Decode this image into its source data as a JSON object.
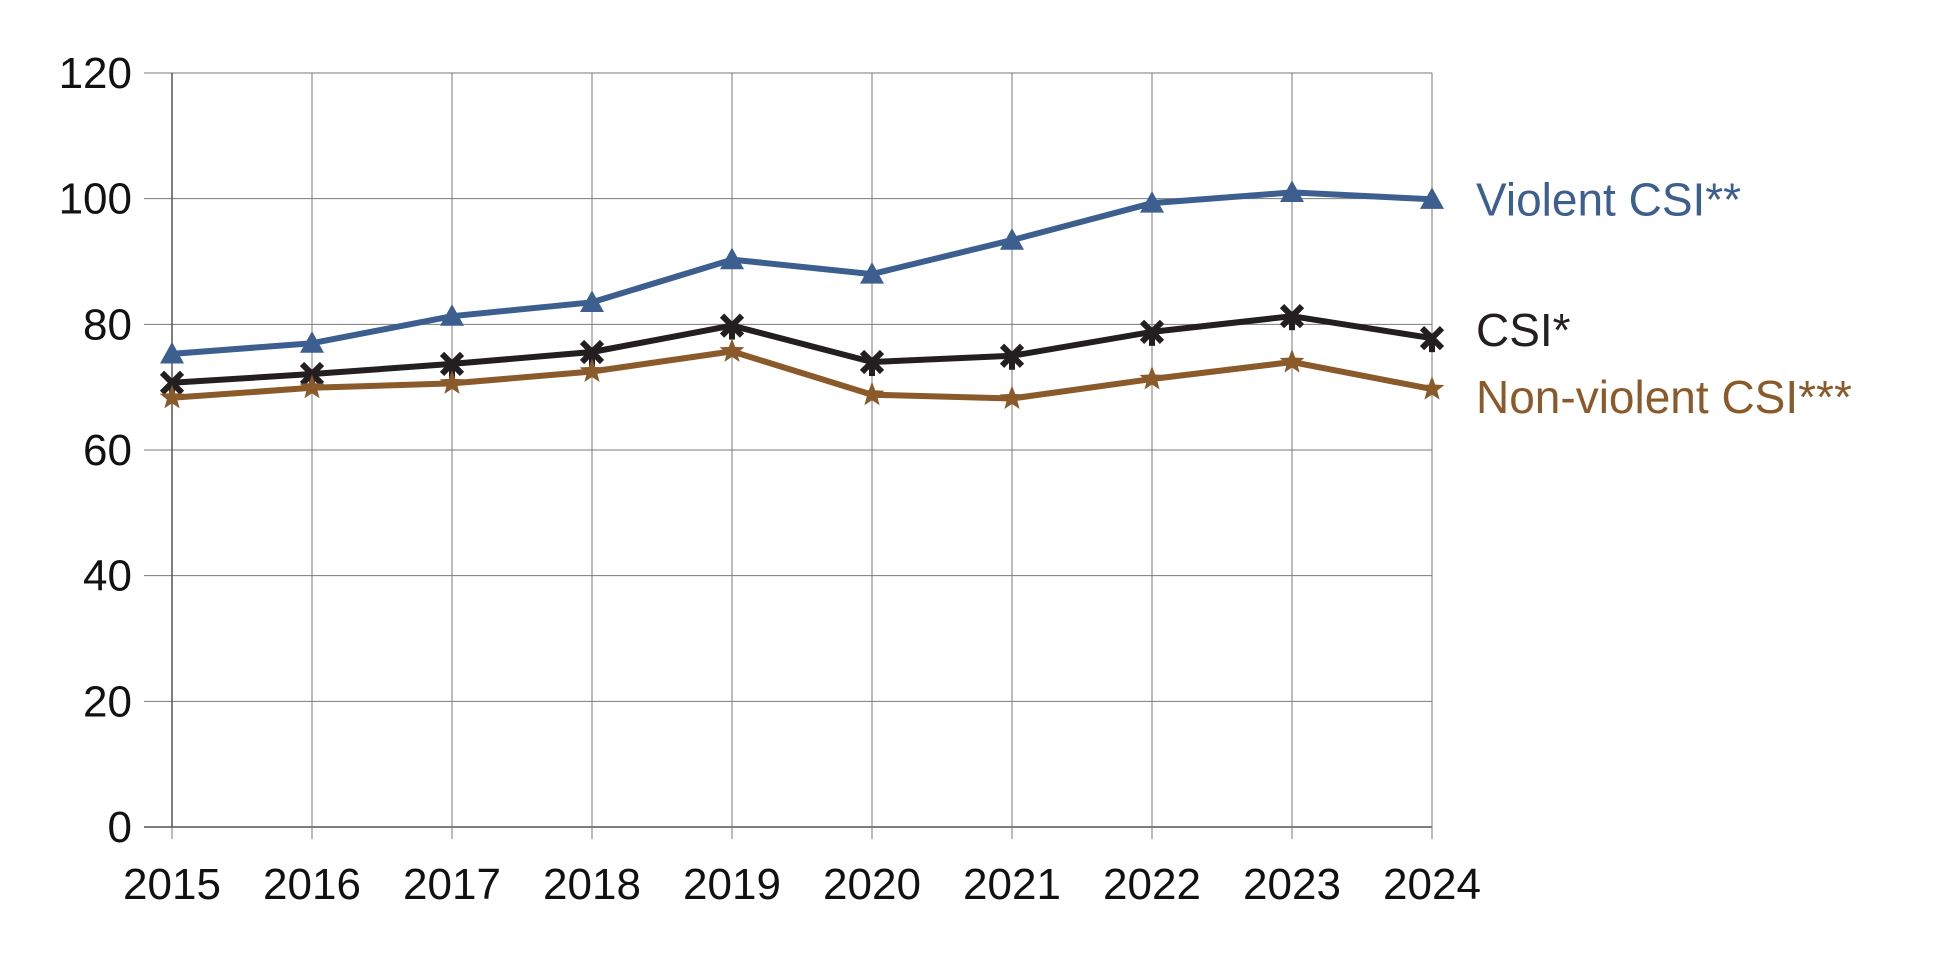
{
  "chart_data": {
    "type": "line",
    "title": "",
    "xlabel": "",
    "ylabel": "",
    "x": [
      "2015",
      "2016",
      "2017",
      "2018",
      "2019",
      "2020",
      "2021",
      "2022",
      "2023",
      "2024"
    ],
    "ylim": [
      0,
      120
    ],
    "yticks": [
      "0",
      "20",
      "40",
      "60",
      "80",
      "100",
      "120"
    ],
    "grid": true,
    "legend": "inline labels at right end of each line",
    "series": [
      {
        "name": "Violent CSI**",
        "color": "#3d5f8f",
        "marker": "triangle",
        "values": [
          75.3,
          77.0,
          81.3,
          83.5,
          90.3,
          88.0,
          93.4,
          99.3,
          101.0,
          99.9
        ]
      },
      {
        "name": "CSI*",
        "color": "#231f20",
        "marker": "cross",
        "values": [
          70.7,
          72.1,
          73.7,
          75.6,
          79.8,
          74.0,
          75.0,
          78.8,
          81.3,
          77.8
        ]
      },
      {
        "name": "Non-violent CSI***",
        "color": "#8b5a2b",
        "marker": "star",
        "values": [
          68.3,
          69.9,
          70.6,
          72.5,
          75.7,
          68.8,
          68.2,
          71.3,
          74.0,
          69.7
        ]
      }
    ]
  }
}
